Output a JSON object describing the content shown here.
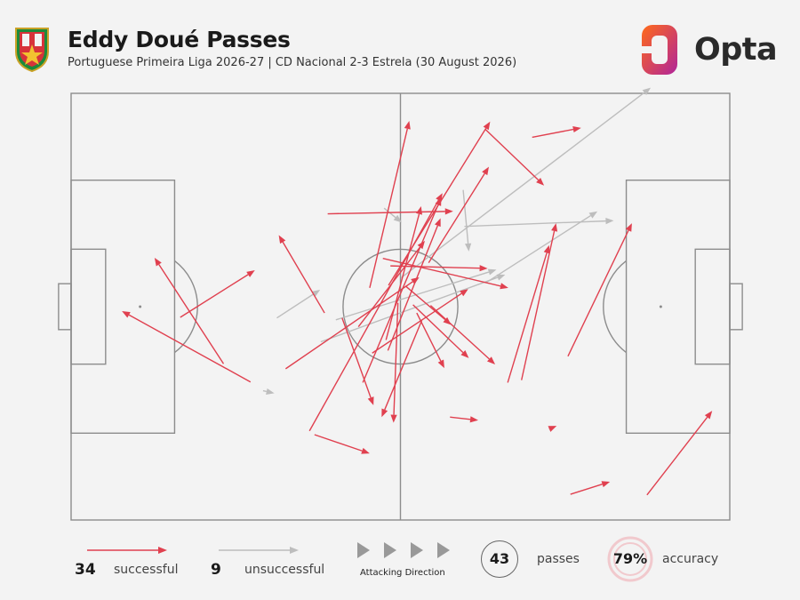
{
  "header": {
    "title": "Eddy Doué Passes",
    "subtitle": "Portuguese Primeira Liga 2026-27 | CD Nacional 2-3 Estrela (30 August 2026)",
    "brand": "Opta",
    "colors": {
      "successful": "#e0404f",
      "unsuccessful": "#bdbdbd",
      "pitch_lines": "#8c8c8c",
      "opta_orange": "#ff6a1a",
      "opta_purple": "#b0249a"
    }
  },
  "legend": {
    "successful_count": "34",
    "successful_label": "successful",
    "unsuccessful_count": "9",
    "unsuccessful_label": "unsuccessful",
    "direction_label": "Attacking Direction",
    "passes_count": "43",
    "passes_label": "passes",
    "accuracy_value": "79%",
    "accuracy_label": "accuracy",
    "accuracy_fraction": 0.79
  },
  "chart_data": {
    "type": "scatter",
    "pitch": {
      "length": 105,
      "width": 68,
      "attacking_direction": "left-to-right"
    },
    "passes": [
      {
        "outcome": "successful",
        "start": [
          28.6,
          22.0
        ],
        "end": [
          8.1,
          33.3
        ]
      },
      {
        "outcome": "successful",
        "start": [
          24.3,
          24.9
        ],
        "end": [
          13.3,
          41.8
        ]
      },
      {
        "outcome": "successful",
        "start": [
          17.4,
          32.3
        ],
        "end": [
          29.3,
          39.8
        ]
      },
      {
        "outcome": "successful",
        "start": [
          40.4,
          33.0
        ],
        "end": [
          33.1,
          45.4
        ]
      },
      {
        "outcome": "successful",
        "start": [
          34.2,
          24.1
        ],
        "end": [
          55.5,
          38.7
        ]
      },
      {
        "outcome": "successful",
        "start": [
          38.0,
          14.2
        ],
        "end": [
          59.2,
          52.1
        ]
      },
      {
        "outcome": "successful",
        "start": [
          47.6,
          37.0
        ],
        "end": [
          53.9,
          63.6
        ]
      },
      {
        "outcome": "successful",
        "start": [
          40.9,
          48.8
        ],
        "end": [
          60.9,
          49.2
        ]
      },
      {
        "outcome": "successful",
        "start": [
          46.5,
          21.9
        ],
        "end": [
          59.0,
          51.4
        ]
      },
      {
        "outcome": "successful",
        "start": [
          48.0,
          26.6
        ],
        "end": [
          63.3,
          36.8
        ]
      },
      {
        "outcome": "successful",
        "start": [
          43.2,
          32.2
        ],
        "end": [
          48.2,
          18.3
        ]
      },
      {
        "outcome": "successful",
        "start": [
          52.1,
          34.6
        ],
        "end": [
          51.4,
          15.5
        ]
      },
      {
        "outcome": "successful",
        "start": [
          45.8,
          30.8
        ],
        "end": [
          56.4,
          44.5
        ]
      },
      {
        "outcome": "successful",
        "start": [
          50.2,
          28.7
        ],
        "end": [
          55.8,
          50.0
        ]
      },
      {
        "outcome": "successful",
        "start": [
          55.9,
          31.8
        ],
        "end": [
          49.5,
          16.4
        ]
      },
      {
        "outcome": "successful",
        "start": [
          50.5,
          27.0
        ],
        "end": [
          58.9,
          48.1
        ]
      },
      {
        "outcome": "successful",
        "start": [
          54.5,
          34.3
        ],
        "end": [
          63.4,
          25.8
        ]
      },
      {
        "outcome": "successful",
        "start": [
          57.3,
          34.2
        ],
        "end": [
          67.6,
          24.8
        ]
      },
      {
        "outcome": "successful",
        "start": [
          53.3,
          37.3
        ],
        "end": [
          60.6,
          31.1
        ]
      },
      {
        "outcome": "successful",
        "start": [
          55.1,
          33.0
        ],
        "end": [
          59.5,
          24.2
        ]
      },
      {
        "outcome": "successful",
        "start": [
          57.0,
          41.0
        ],
        "end": [
          66.6,
          56.3
        ]
      },
      {
        "outcome": "successful",
        "start": [
          50.6,
          37.4
        ],
        "end": [
          66.8,
          63.5
        ]
      },
      {
        "outcome": "successful",
        "start": [
          66.0,
          62.3
        ],
        "end": [
          75.4,
          53.3
        ]
      },
      {
        "outcome": "successful",
        "start": [
          73.5,
          61.0
        ],
        "end": [
          81.3,
          62.5
        ]
      },
      {
        "outcome": "successful",
        "start": [
          49.7,
          41.7
        ],
        "end": [
          69.7,
          37.0
        ]
      },
      {
        "outcome": "successful",
        "start": [
          50.9,
          40.5
        ],
        "end": [
          66.4,
          40.1
        ]
      },
      {
        "outcome": "successful",
        "start": [
          71.8,
          22.3
        ],
        "end": [
          77.3,
          47.3
        ]
      },
      {
        "outcome": "successful",
        "start": [
          69.6,
          21.9
        ],
        "end": [
          76.2,
          43.8
        ]
      },
      {
        "outcome": "successful",
        "start": [
          79.2,
          26.1
        ],
        "end": [
          89.4,
          47.3
        ]
      },
      {
        "outcome": "successful",
        "start": [
          60.4,
          16.4
        ],
        "end": [
          64.9,
          15.9
        ]
      },
      {
        "outcome": "successful",
        "start": [
          76.2,
          14.5
        ],
        "end": [
          77.4,
          15.0
        ]
      },
      {
        "outcome": "successful",
        "start": [
          38.8,
          13.6
        ],
        "end": [
          47.6,
          10.6
        ]
      },
      {
        "outcome": "successful",
        "start": [
          79.6,
          4.1
        ],
        "end": [
          85.9,
          6.1
        ]
      },
      {
        "outcome": "successful",
        "start": [
          91.8,
          4.0
        ],
        "end": [
          102.2,
          17.4
        ]
      },
      {
        "outcome": "unsuccessful",
        "start": [
          32.8,
          32.2
        ],
        "end": [
          39.7,
          36.7
        ]
      },
      {
        "outcome": "unsuccessful",
        "start": [
          30.6,
          20.6
        ],
        "end": [
          32.4,
          20.2
        ]
      },
      {
        "outcome": "unsuccessful",
        "start": [
          39.8,
          28.4
        ],
        "end": [
          69.2,
          39.1
        ]
      },
      {
        "outcome": "unsuccessful",
        "start": [
          42.2,
          31.9
        ],
        "end": [
          67.8,
          39.9
        ]
      },
      {
        "outcome": "unsuccessful",
        "start": [
          52.6,
          38.6
        ],
        "end": [
          92.4,
          68.9
        ]
      },
      {
        "outcome": "unsuccessful",
        "start": [
          66.1,
          37.8
        ],
        "end": [
          83.9,
          49.2
        ]
      },
      {
        "outcome": "unsuccessful",
        "start": [
          62.7,
          46.8
        ],
        "end": [
          86.5,
          47.7
        ]
      },
      {
        "outcome": "unsuccessful",
        "start": [
          62.5,
          52.6
        ],
        "end": [
          63.4,
          42.8
        ]
      },
      {
        "outcome": "unsuccessful",
        "start": [
          49.9,
          49.7
        ],
        "end": [
          52.7,
          47.4
        ]
      }
    ]
  }
}
